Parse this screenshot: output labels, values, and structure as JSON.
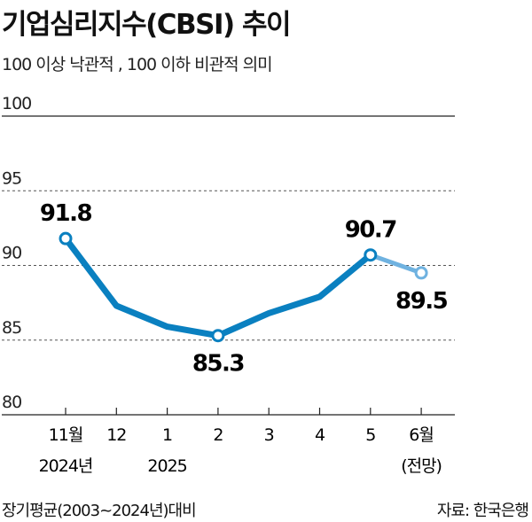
{
  "title": "기업심리지수(CBSI) 추이",
  "subtitle": "100 이상 낙관적 , 100 이하 비관적 의미",
  "footer_note": "장기평균(2003~2024년)대비",
  "source": "자료: 한국은행",
  "colors": {
    "line": "#0a80c0",
    "forecast": "#6fb2e0"
  },
  "chart_data": {
    "type": "line",
    "categories": [
      [
        "11월",
        "2024년"
      ],
      [
        "12",
        ""
      ],
      [
        "1",
        "2025"
      ],
      [
        "2",
        ""
      ],
      [
        "3",
        ""
      ],
      [
        "4",
        ""
      ],
      [
        "5",
        ""
      ],
      [
        "6월",
        "(전망)"
      ]
    ],
    "values": [
      91.8,
      87.3,
      85.9,
      85.3,
      86.8,
      87.9,
      90.7,
      89.5
    ],
    "labeled": {
      "0": "91.8",
      "3": "85.3",
      "6": "90.7",
      "7": "89.5"
    },
    "forecast_from_index": 6,
    "ylim": [
      80,
      100
    ],
    "yticks": [
      80,
      85,
      90,
      95,
      100
    ],
    "grid": true
  }
}
